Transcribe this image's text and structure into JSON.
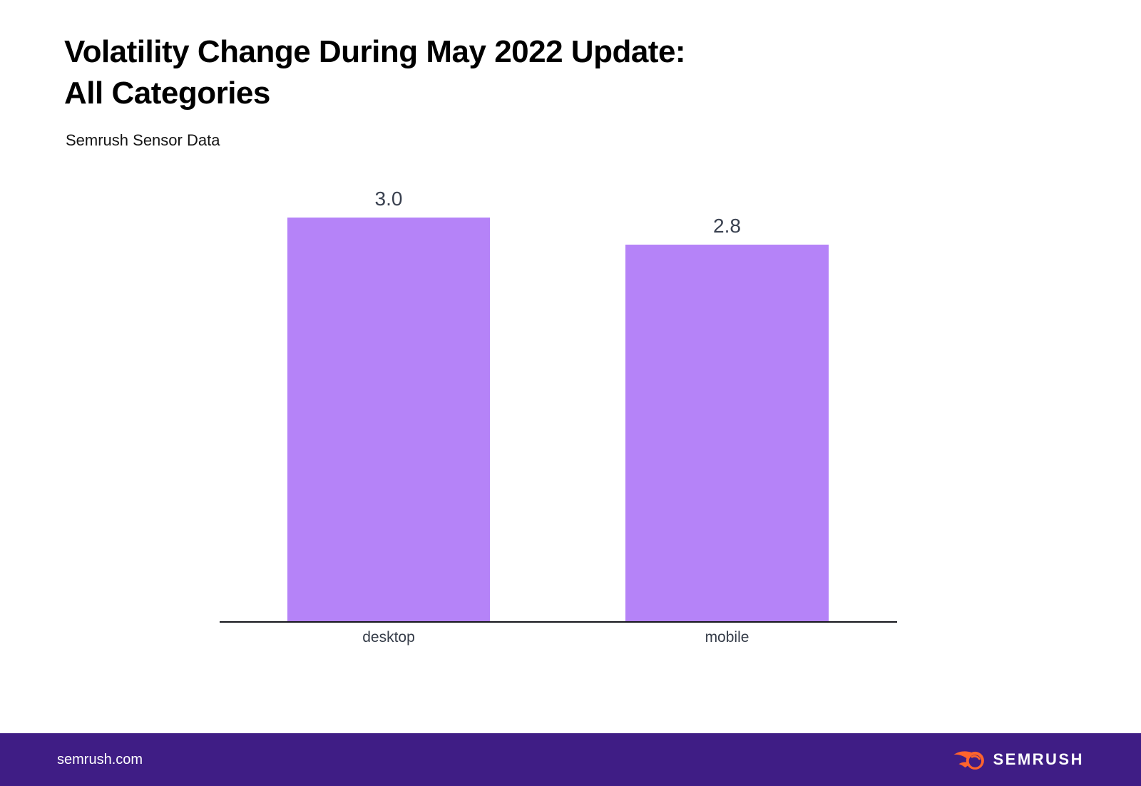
{
  "header": {
    "title_line1": "Volatility Change During May 2022 Update:",
    "title_line2": "All Categories",
    "subtitle": "Semrush Sensor Data"
  },
  "chart_data": {
    "type": "bar",
    "title": "Volatility Change During May 2022 Update: All Categories",
    "subtitle": "Semrush Sensor Data",
    "categories": [
      "desktop",
      "mobile"
    ],
    "values": [
      3.0,
      2.8
    ],
    "value_labels": [
      "3.0",
      "2.8"
    ],
    "xlabel": "",
    "ylabel": "",
    "ylim": [
      0,
      3.2
    ],
    "grid": false,
    "legend": false,
    "bar_color": "#b583f8",
    "value_label_color": "#3a4150",
    "axis_line_color": "#15171c"
  },
  "footer": {
    "site": "semrush.com",
    "brand": "SEMRUSH",
    "background": "#3f1d85",
    "logo_color": "#ff642d"
  }
}
